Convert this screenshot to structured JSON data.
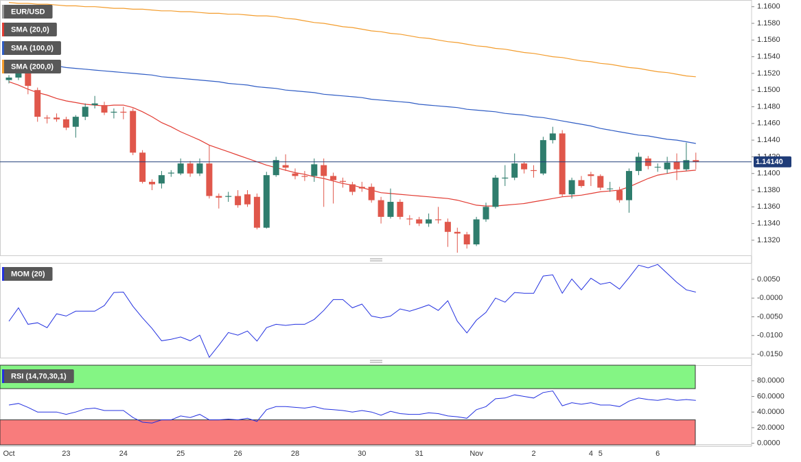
{
  "chart_data": [
    {
      "type": "candlestick",
      "categories": [
        "Oct",
        null,
        null,
        null,
        null,
        null,
        "23",
        null,
        null,
        null,
        null,
        null,
        "24",
        null,
        null,
        null,
        null,
        null,
        "25",
        null,
        null,
        null,
        null,
        null,
        "26",
        null,
        null,
        null,
        null,
        null,
        "28",
        null,
        null,
        null,
        null,
        null,
        null,
        "30",
        null,
        null,
        null,
        null,
        null,
        "31",
        null,
        null,
        null,
        null,
        null,
        "Nov",
        null,
        null,
        null,
        null,
        null,
        "2",
        null,
        null,
        null,
        null,
        null,
        "4",
        "5",
        null,
        null,
        null,
        null,
        null,
        "6",
        null,
        null,
        null,
        null
      ],
      "series": [
        {
          "name": "EUR/USD",
          "color_up": "#2f7d6d",
          "color_down": "#e0574b",
          "open": [
            1.1512,
            1.1515,
            1.153,
            1.15,
            1.1467,
            1.1467,
            1.1465,
            1.1456,
            1.1468,
            1.1482,
            1.1482,
            1.1473,
            1.1474,
            1.1475,
            1.1425,
            1.139,
            1.1388,
            1.14,
            1.14,
            1.1412,
            1.14,
            1.1412,
            1.1373,
            1.1372,
            1.1373,
            1.1375,
            1.1372,
            1.1335,
            1.1398,
            1.141,
            1.14,
            1.1397,
            1.1397,
            1.141,
            1.1397,
            1.1391,
            1.1387,
            1.1384,
            1.1384,
            1.1368,
            1.1348,
            1.1366,
            1.1346,
            1.1345,
            1.134,
            1.1345,
            1.1342,
            1.133,
            1.1327,
            1.1315,
            1.1345,
            1.136,
            1.1394,
            1.1395,
            1.1412,
            1.1404,
            1.14,
            1.144,
            1.1448,
            1.1375,
            1.1392,
            1.1399,
            1.1397,
            1.1382,
            1.138,
            1.1368,
            1.1403,
            1.1418,
            1.1408,
            1.1405,
            1.1414,
            1.1405,
            1.1416
          ],
          "high": [
            1.1518,
            1.1535,
            1.1533,
            1.1503,
            1.147,
            1.1472,
            1.1468,
            1.147,
            1.1484,
            1.1493,
            1.1486,
            1.1478,
            1.148,
            1.1478,
            1.1428,
            1.1393,
            1.1403,
            1.1404,
            1.1418,
            1.1415,
            1.1418,
            1.1434,
            1.1376,
            1.1378,
            1.138,
            1.138,
            1.1376,
            1.1402,
            1.142,
            1.1423,
            1.1406,
            1.1403,
            1.1418,
            1.1418,
            1.1401,
            1.1395,
            1.139,
            1.139,
            1.1388,
            1.1372,
            1.1382,
            1.1369,
            1.135,
            1.1348,
            1.1352,
            1.136,
            1.1346,
            1.1335,
            1.133,
            1.1348,
            1.1365,
            1.1398,
            1.141,
            1.1424,
            1.1414,
            1.141,
            1.1444,
            1.1456,
            1.1452,
            1.1395,
            1.1397,
            1.1402,
            1.1399,
            1.139,
            1.1384,
            1.1406,
            1.1425,
            1.1421,
            1.1412,
            1.142,
            1.1424,
            1.1437,
            1.1425
          ],
          "low": [
            1.1508,
            1.1512,
            1.1495,
            1.1462,
            1.146,
            1.1462,
            1.1452,
            1.1443,
            1.1464,
            1.1478,
            1.147,
            1.1466,
            1.1465,
            1.1422,
            1.1388,
            1.138,
            1.1382,
            1.1396,
            1.1398,
            1.1396,
            1.1397,
            1.137,
            1.1358,
            1.1366,
            1.1359,
            1.136,
            1.1333,
            1.1334,
            1.1396,
            1.1403,
            1.1393,
            1.1391,
            1.139,
            1.136,
            1.1364,
            1.1383,
            1.1374,
            1.1378,
            1.1365,
            1.134,
            1.1346,
            1.1345,
            1.1338,
            1.1337,
            1.1336,
            1.134,
            1.1312,
            1.1305,
            1.131,
            1.1313,
            1.1342,
            1.1358,
            1.1385,
            1.1392,
            1.14,
            1.1395,
            1.1398,
            1.1436,
            1.1372,
            1.137,
            1.1383,
            1.1385,
            1.138,
            1.1378,
            1.1365,
            1.1353,
            1.1398,
            1.1405,
            1.1402,
            1.14,
            1.1392,
            1.1403,
            1.1405
          ],
          "close": [
            1.1515,
            1.153,
            1.1505,
            1.1468,
            1.1466,
            1.1465,
            1.1455,
            1.1468,
            1.148,
            1.1484,
            1.1473,
            1.1474,
            1.1473,
            1.1425,
            1.139,
            1.1387,
            1.1398,
            1.1401,
            1.1412,
            1.14,
            1.1412,
            1.1373,
            1.1371,
            1.1373,
            1.1362,
            1.1363,
            1.1335,
            1.1398,
            1.1416,
            1.1407,
            1.1397,
            1.1396,
            1.1411,
            1.1397,
            1.1392,
            1.139,
            1.1378,
            1.1382,
            1.1368,
            1.1348,
            1.1366,
            1.1348,
            1.1345,
            1.134,
            1.1345,
            1.1344,
            1.133,
            1.1328,
            1.1315,
            1.1345,
            1.136,
            1.1395,
            1.1395,
            1.1412,
            1.1405,
            1.1403,
            1.144,
            1.1448,
            1.1375,
            1.1392,
            1.1385,
            1.1397,
            1.1383,
            1.1382,
            1.1368,
            1.1403,
            1.142,
            1.1409,
            1.1408,
            1.1413,
            1.1405,
            1.1416,
            1.1414
          ]
        },
        {
          "name": "SMA (20,0)",
          "color": "#e23b32",
          "values": [
            1.151,
            1.1506,
            1.1501,
            1.1497,
            1.1494,
            1.149,
            1.1487,
            1.1485,
            1.1483,
            1.1482,
            1.1481,
            1.1482,
            1.1482,
            1.1479,
            1.1474,
            1.1468,
            1.1461,
            1.1456,
            1.145,
            1.1445,
            1.144,
            1.1434,
            1.143,
            1.1426,
            1.1422,
            1.1418,
            1.1414,
            1.141,
            1.1407,
            1.1404,
            1.1401,
            1.1399,
            1.1396,
            1.1394,
            1.1391,
            1.1388,
            1.1386,
            1.1383,
            1.138,
            1.1377,
            1.1376,
            1.1375,
            1.1374,
            1.1373,
            1.1372,
            1.1371,
            1.137,
            1.1368,
            1.1365,
            1.1362,
            1.1361,
            1.1361,
            1.1362,
            1.1363,
            1.1364,
            1.1366,
            1.1368,
            1.137,
            1.1372,
            1.1373,
            1.1374,
            1.1376,
            1.1378,
            1.1379,
            1.138,
            1.1384,
            1.1389,
            1.1394,
            1.1398,
            1.14,
            1.1402,
            1.1403,
            1.1404
          ]
        },
        {
          "name": "SMA (100,0)",
          "color": "#2f5cc4",
          "values": [
            1.1534,
            1.1533,
            1.1532,
            1.1531,
            1.153,
            1.1529,
            1.1527,
            1.1526,
            1.1525,
            1.1524,
            1.1523,
            1.1522,
            1.1521,
            1.152,
            1.1519,
            1.1518,
            1.1516,
            1.1515,
            1.1514,
            1.1513,
            1.1512,
            1.1511,
            1.151,
            1.1508,
            1.1507,
            1.1506,
            1.1504,
            1.1503,
            1.1502,
            1.15,
            1.1499,
            1.1498,
            1.1497,
            1.1495,
            1.1494,
            1.1493,
            1.1492,
            1.1491,
            1.1489,
            1.1488,
            1.1487,
            1.1486,
            1.1485,
            1.1483,
            1.1482,
            1.1481,
            1.148,
            1.1479,
            1.1477,
            1.1476,
            1.1475,
            1.1474,
            1.1472,
            1.1471,
            1.147,
            1.1468,
            1.1467,
            1.1465,
            1.1463,
            1.1461,
            1.1459,
            1.1457,
            1.1454,
            1.1452,
            1.145,
            1.1448,
            1.1446,
            1.1445,
            1.1443,
            1.1441,
            1.144,
            1.1438,
            1.1436
          ]
        },
        {
          "name": "SMA (200,0)",
          "color": "#f39c2c",
          "values": [
            1.1605,
            1.1604,
            1.1604,
            1.1603,
            1.1603,
            1.1602,
            1.1601,
            1.1601,
            1.16,
            1.16,
            1.1599,
            1.1598,
            1.1598,
            1.1597,
            1.1597,
            1.1596,
            1.1595,
            1.1595,
            1.1594,
            1.1594,
            1.1593,
            1.1592,
            1.1592,
            1.1591,
            1.1591,
            1.159,
            1.1589,
            1.1589,
            1.1588,
            1.1586,
            1.1585,
            1.1583,
            1.1581,
            1.158,
            1.1578,
            1.1576,
            1.1575,
            1.1573,
            1.1571,
            1.157,
            1.1568,
            1.1567,
            1.1565,
            1.1563,
            1.1562,
            1.156,
            1.1558,
            1.1557,
            1.1555,
            1.1553,
            1.1552,
            1.155,
            1.1549,
            1.1547,
            1.1545,
            1.1544,
            1.1542,
            1.154,
            1.1539,
            1.1537,
            1.1535,
            1.1534,
            1.1532,
            1.1531,
            1.1529,
            1.1527,
            1.1526,
            1.1524,
            1.1522,
            1.1521,
            1.1519,
            1.1517,
            1.1516
          ]
        }
      ],
      "last_price": {
        "value": 1.1414,
        "label": "1.14140"
      },
      "ylim": [
        1.1301,
        1.1608
      ],
      "yticks": [
        {
          "value": 1.132,
          "label": "1.1320"
        },
        {
          "value": 1.134,
          "label": "1.1340"
        },
        {
          "value": 1.136,
          "label": "1.1360"
        },
        {
          "value": 1.138,
          "label": "1.1380"
        },
        {
          "value": 1.14,
          "label": "1.1400"
        },
        {
          "value": 1.142,
          "label": "1.1420"
        },
        {
          "value": 1.144,
          "label": "1.1440"
        },
        {
          "value": 1.146,
          "label": "1.1460"
        },
        {
          "value": 1.148,
          "label": "1.1480"
        },
        {
          "value": 1.15,
          "label": "1.1500"
        },
        {
          "value": 1.152,
          "label": "1.1520"
        },
        {
          "value": 1.154,
          "label": "1.1540"
        },
        {
          "value": 1.156,
          "label": "1.1560"
        },
        {
          "value": 1.158,
          "label": "1.1580"
        },
        {
          "value": 1.16,
          "label": "1.1600"
        }
      ]
    },
    {
      "type": "line",
      "series": [
        {
          "name": "MOM (20)",
          "color": "#2331e0",
          "values": [
            -0.0062,
            -0.0026,
            -0.007,
            -0.0066,
            -0.0079,
            -0.0042,
            -0.0048,
            -0.0035,
            -0.0035,
            -0.0035,
            -0.002,
            0.0015,
            0.0016,
            -0.0022,
            -0.0053,
            -0.0081,
            -0.0114,
            -0.011,
            -0.0104,
            -0.0114,
            -0.0099,
            -0.0158,
            -0.0126,
            -0.0092,
            -0.0099,
            -0.0088,
            -0.0115,
            -0.0079,
            -0.007,
            -0.0073,
            -0.007,
            -0.007,
            -0.0057,
            -0.0033,
            -0.0004,
            -0.0004,
            -0.0026,
            -0.0016,
            -0.0048,
            -0.0053,
            -0.0048,
            -0.0029,
            -0.0035,
            -0.0027,
            -0.0018,
            -0.0033,
            -0.0007,
            -0.0062,
            -0.0093,
            -0.0059,
            -0.0038,
            0.0,
            -0.0011,
            0.0015,
            0.0013,
            0.0013,
            0.0059,
            0.0062,
            0.0013,
            0.0051,
            0.0022,
            0.0053,
            0.0037,
            0.0042,
            0.0024,
            0.0055,
            0.0088,
            0.0081,
            0.009,
            0.0066,
            0.0042,
            0.0022,
            0.0016
          ]
        }
      ],
      "ylim": [
        -0.0161,
        0.0094
      ],
      "yticks": [
        {
          "value": -0.015,
          "label": "-0.0150"
        },
        {
          "value": -0.01,
          "label": "-0.0100"
        },
        {
          "value": -0.005,
          "label": "-0.0050"
        },
        {
          "value": 0,
          "label": "-0.0000"
        },
        {
          "value": 0.005,
          "label": "0.0050"
        }
      ]
    },
    {
      "type": "rsi",
      "series": [
        {
          "name": "RSI (14,70,30,1)",
          "color": "#2331e0",
          "values": [
            49,
            51,
            46,
            40,
            40,
            40,
            37,
            40,
            44,
            45,
            42,
            42,
            42,
            33,
            27,
            26,
            30,
            30,
            35,
            33,
            37,
            30,
            30,
            31,
            30,
            32,
            28,
            43,
            47,
            47,
            46,
            45,
            47,
            44,
            43,
            42,
            40,
            42,
            40,
            36,
            41,
            38,
            37,
            37,
            39,
            38,
            35,
            34,
            32,
            43,
            47,
            57,
            58,
            62,
            60,
            58,
            65,
            67,
            48,
            52,
            50,
            52,
            49,
            49,
            47,
            54,
            58,
            56,
            55,
            57,
            55,
            56,
            55
          ]
        }
      ],
      "upper_band": 70,
      "lower_band": 30,
      "upper_color": "#84f584",
      "lower_color": "#f87c7c",
      "ylim": [
        -2,
        100
      ],
      "yticks": [
        {
          "value": 0,
          "label": "0.0000"
        },
        {
          "value": 20,
          "label": "20.0000"
        },
        {
          "value": 40,
          "label": "40.0000"
        },
        {
          "value": 60,
          "label": "60.0000"
        },
        {
          "value": 80,
          "label": "80.0000"
        }
      ]
    }
  ]
}
